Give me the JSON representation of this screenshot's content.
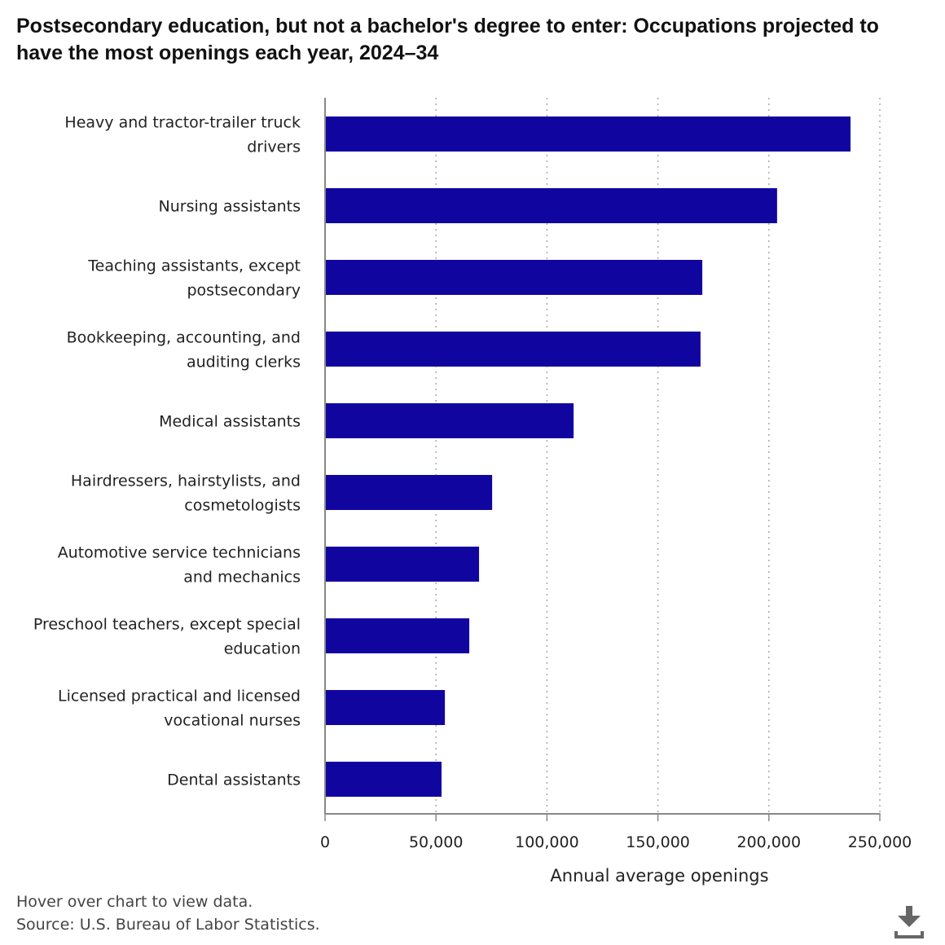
{
  "title": "Postsecondary education, but not a bachelor's degree to enter: Occupations projected to have the most openings each year, 2024–34",
  "notes": {
    "hover": "Hover over chart to view data.",
    "source": "Source: U.S. Bureau of Labor Statistics."
  },
  "download_icon": "download-icon",
  "chart_data": {
    "type": "bar",
    "orientation": "horizontal",
    "categories": [
      [
        "Heavy and tractor-trailer truck",
        "drivers"
      ],
      [
        "Nursing assistants"
      ],
      [
        "Teaching assistants, except",
        "postsecondary"
      ],
      [
        "Bookkeeping, accounting, and",
        "auditing clerks"
      ],
      [
        "Medical assistants"
      ],
      [
        "Hairdressers, hairstylists, and",
        "cosmetologists"
      ],
      [
        "Automotive service technicians",
        "and mechanics"
      ],
      [
        "Preschool teachers, except special",
        "education"
      ],
      [
        "Licensed practical and licensed",
        "vocational nurses"
      ],
      [
        "Dental assistants"
      ]
    ],
    "values": [
      236800,
      203700,
      170000,
      169200,
      112000,
      75300,
      69400,
      65000,
      54000,
      52500
    ],
    "xlabel": "Annual average openings",
    "xlim": [
      0,
      250000
    ],
    "xticks": [
      0,
      50000,
      100000,
      150000,
      200000,
      250000
    ],
    "xtick_labels": [
      "0",
      "50,000",
      "100,000",
      "150,000",
      "200,000",
      "250,000"
    ],
    "grid": "vertical dotted",
    "bar_color": "#1105a0"
  }
}
